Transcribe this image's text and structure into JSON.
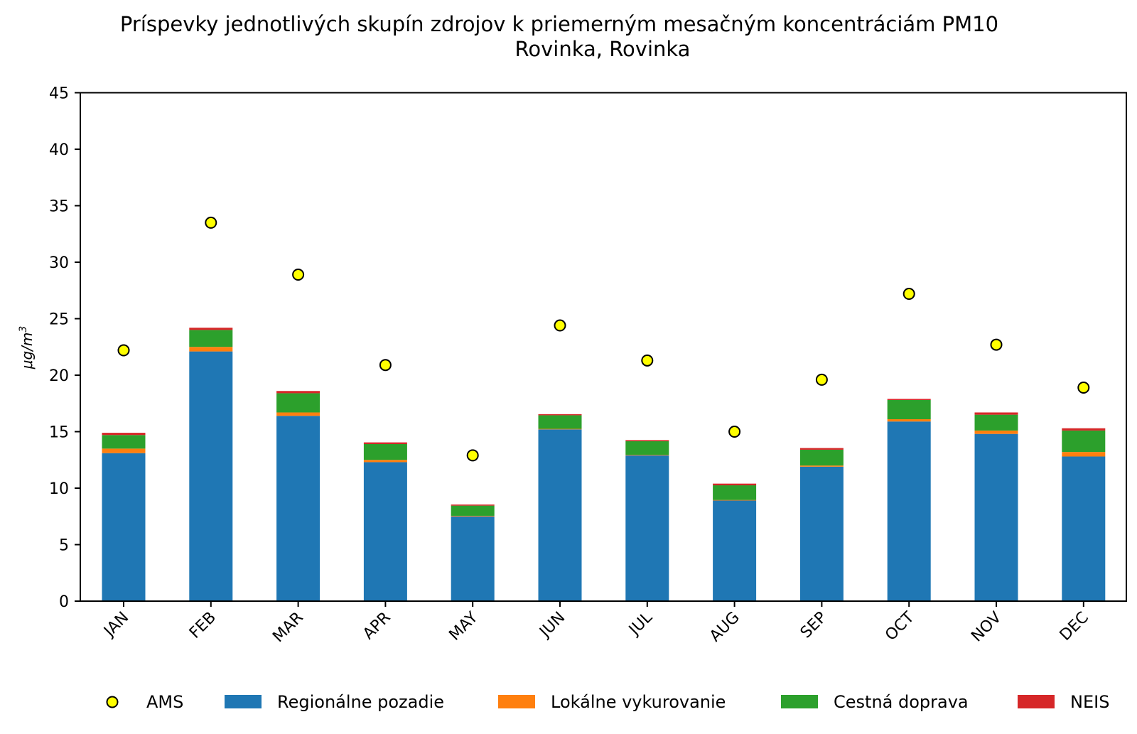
{
  "chart_data": {
    "type": "bar",
    "stacked": true,
    "title_line1": "Príspevky jednotlivých skupín zdrojov k priemerným mesačným koncentráciám PM10",
    "title_line2": "Rovinka, Rovinka",
    "ylabel": "μg/m",
    "ylabel_sup": "3",
    "xlabel": "",
    "ylim": [
      0,
      45
    ],
    "yticks": [
      0,
      5,
      10,
      15,
      20,
      25,
      30,
      35,
      40,
      45
    ],
    "categories": [
      "JAN",
      "FEB",
      "MAR",
      "APR",
      "MAY",
      "JUN",
      "JUL",
      "AUG",
      "SEP",
      "OCT",
      "NOV",
      "DEC"
    ],
    "series": [
      {
        "name": "Regionálne pozadie",
        "color": "#1f77b4",
        "values": [
          13.1,
          22.1,
          16.4,
          12.3,
          7.5,
          15.2,
          12.9,
          8.9,
          11.9,
          15.9,
          14.8,
          12.8
        ]
      },
      {
        "name": "Lokálne vykurovanie",
        "color": "#ff7f0e",
        "values": [
          0.4,
          0.4,
          0.3,
          0.2,
          0.05,
          0.05,
          0.05,
          0.05,
          0.1,
          0.2,
          0.3,
          0.4
        ]
      },
      {
        "name": "Cestná doprava",
        "color": "#2ca02c",
        "values": [
          1.2,
          1.5,
          1.7,
          1.4,
          0.9,
          1.2,
          1.2,
          1.3,
          1.4,
          1.7,
          1.4,
          1.9
        ]
      },
      {
        "name": "NEIS",
        "color": "#d62728",
        "values": [
          0.2,
          0.2,
          0.2,
          0.15,
          0.1,
          0.1,
          0.1,
          0.15,
          0.15,
          0.1,
          0.2,
          0.2
        ]
      }
    ],
    "points": {
      "name": "AMS",
      "color": "#ffff00",
      "edge_color": "#000000",
      "values": [
        22.2,
        33.5,
        28.9,
        20.9,
        12.9,
        24.4,
        21.3,
        15.0,
        19.6,
        27.2,
        22.7,
        18.9
      ]
    },
    "legend": {
      "placement": "bottom",
      "entries": [
        "AMS",
        "Regionálne pozadie",
        "Lokálne vykurovanie",
        "Cestná doprava",
        "NEIS"
      ]
    },
    "grid": false
  }
}
